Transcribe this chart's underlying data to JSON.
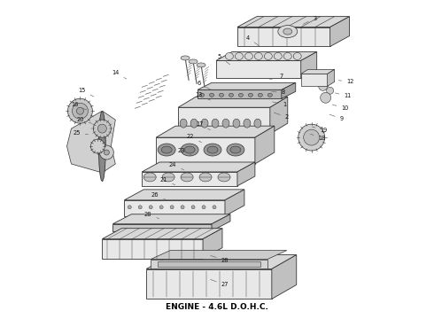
{
  "caption": "ENGINE - 4.6L D.O.H.C.",
  "caption_fontsize": 6.5,
  "caption_fontweight": "bold",
  "background_color": "#ffffff",
  "figsize": [
    4.9,
    3.6
  ],
  "dpi": 100,
  "lc": "#333333",
  "lw": 0.6,
  "fc_light": "#e8e8e8",
  "fc_mid": "#d8d8d8",
  "fc_dark": "#c0c0c0",
  "fc_white": "#f5f5f5"
}
